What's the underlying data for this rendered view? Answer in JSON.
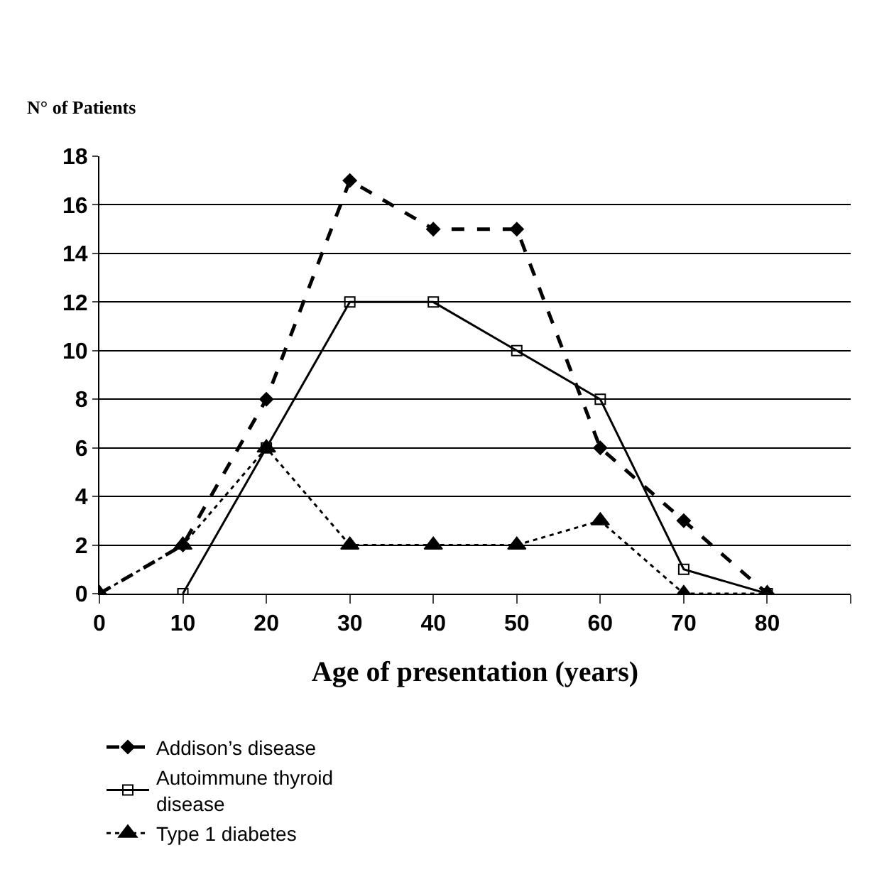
{
  "chart_data": {
    "type": "line",
    "xlabel": "Age of presentation (years)",
    "ylabel": "N° of Patients",
    "x": [
      0,
      10,
      20,
      30,
      40,
      50,
      60,
      70,
      80
    ],
    "xlim": [
      0,
      90
    ],
    "xticks": [
      0,
      10,
      20,
      30,
      40,
      50,
      60,
      70,
      80,
      {
        "value": 90,
        "label": null
      }
    ],
    "ylim": [
      0,
      18
    ],
    "yticks": [
      0,
      2,
      4,
      6,
      8,
      10,
      12,
      14,
      16,
      18
    ],
    "grid": "y",
    "legend": "bottom",
    "series": [
      {
        "name": "Addison’s disease",
        "color": "#000000",
        "line_style": "dashed",
        "marker": "diamond",
        "values": [
          0,
          2,
          8,
          17,
          15,
          15,
          6,
          3,
          0
        ]
      },
      {
        "name": "Autoimmune thyroid disease",
        "color": "#000000",
        "line_style": "solid",
        "marker": "square",
        "values": [
          null,
          0,
          6,
          12,
          12,
          10,
          8,
          1,
          0
        ]
      },
      {
        "name": "Type 1 diabetes",
        "color": "#000000",
        "line_style": "dotted",
        "marker": "triangle",
        "values": [
          0,
          2,
          6,
          2,
          2,
          2,
          3,
          0,
          0
        ]
      }
    ]
  }
}
